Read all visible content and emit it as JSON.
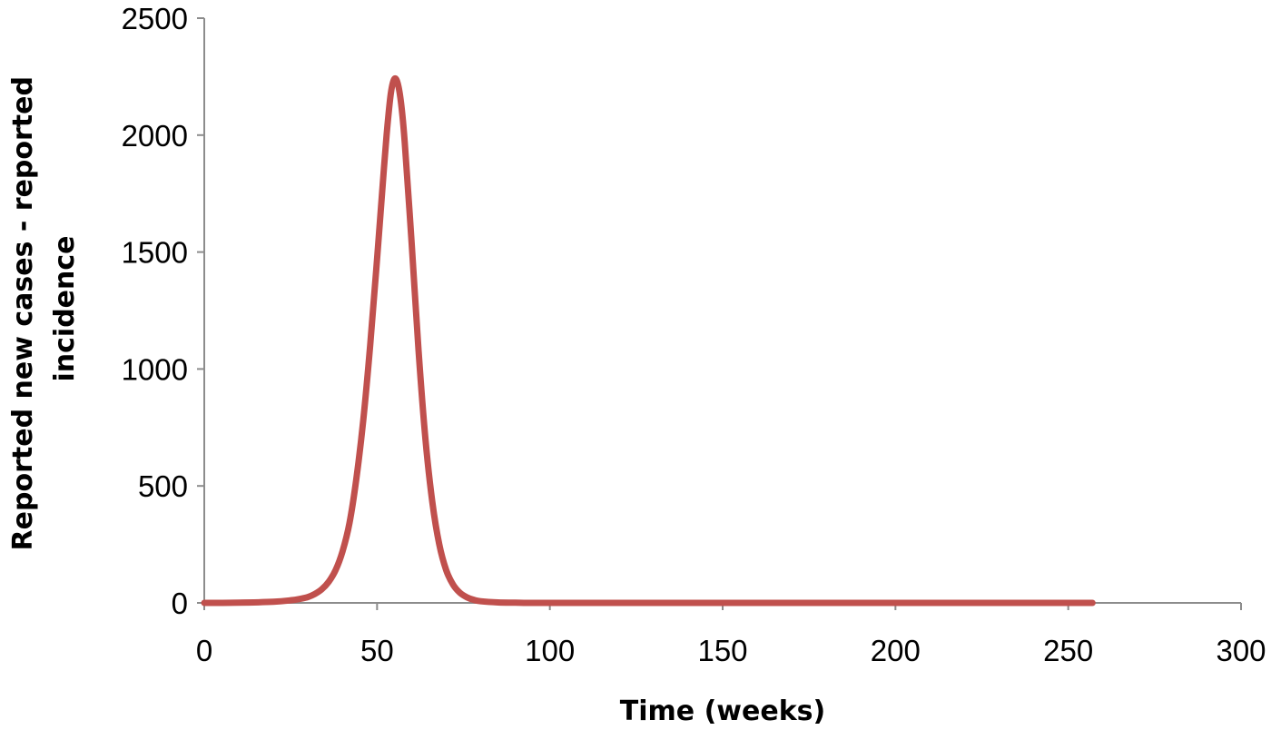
{
  "chart_data": {
    "type": "line",
    "title": "",
    "xlabel": "Time (weeks)",
    "ylabel_lines": [
      "Reported new cases - reported",
      "incidence"
    ],
    "xlim": [
      0,
      300
    ],
    "ylim": [
      0,
      2500
    ],
    "x_ticks": [
      0,
      50,
      100,
      150,
      200,
      250,
      300
    ],
    "y_ticks": [
      0,
      500,
      1000,
      1500,
      2000,
      2500
    ],
    "grid": false,
    "legend": "none",
    "series": [
      {
        "color": "#c0504d",
        "x": [
          0,
          10,
          20,
          25,
          28,
          30,
          32,
          34,
          36,
          38,
          40,
          42,
          44,
          46,
          48,
          50,
          52,
          53,
          54,
          55,
          56,
          57,
          58,
          60,
          62,
          64,
          66,
          68,
          70,
          72,
          74,
          76,
          78,
          80,
          85,
          90,
          100,
          150,
          200,
          257
        ],
        "y": [
          0,
          1,
          5,
          11,
          18,
          25,
          38,
          58,
          90,
          140,
          220,
          340,
          530,
          780,
          1100,
          1470,
          1860,
          2040,
          2180,
          2240,
          2220,
          2130,
          1970,
          1540,
          1080,
          700,
          430,
          250,
          140,
          78,
          43,
          24,
          13,
          7,
          2,
          1,
          0,
          0,
          0,
          0
        ]
      }
    ]
  }
}
